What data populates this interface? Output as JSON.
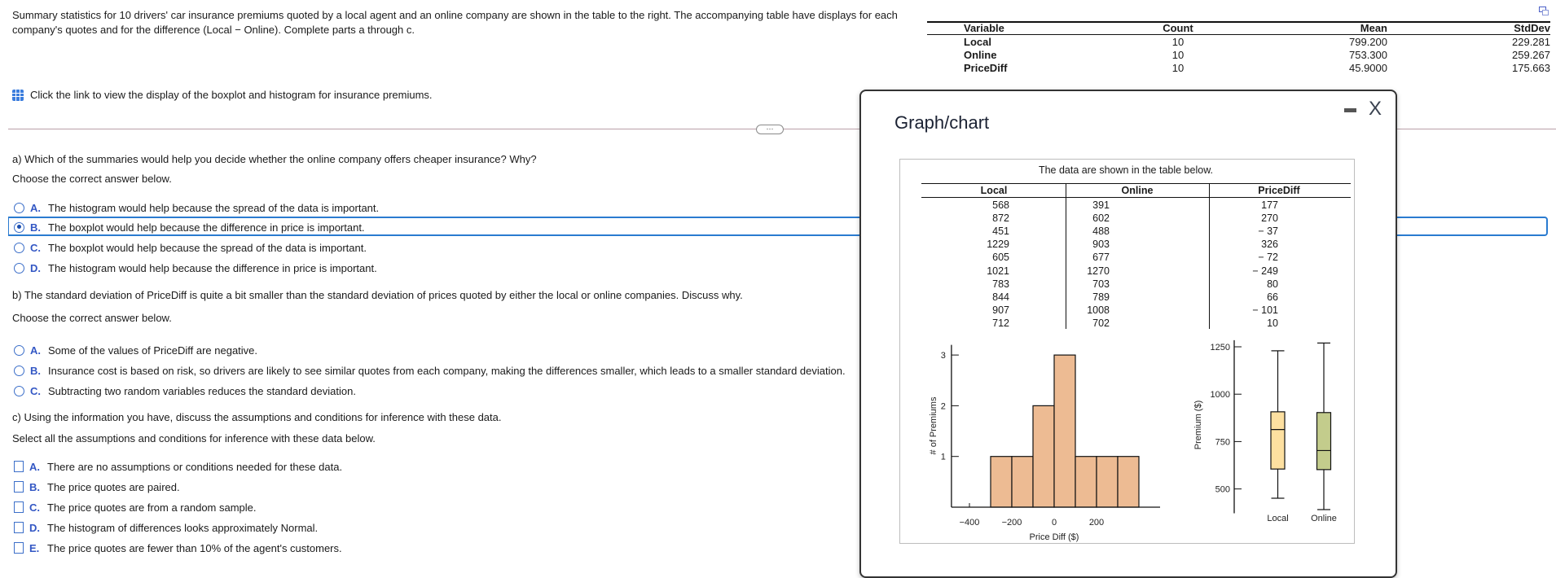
{
  "intro": "Summary statistics for 10 drivers' car insurance premiums quoted by a local agent and an online company are shown in the table to the right. The accompanying table have displays for each company's quotes and for the difference (Local − Online). Complete parts a through c.",
  "stats_table": {
    "headers": [
      "Variable",
      "Count",
      "Mean",
      "StdDev"
    ],
    "rows": [
      [
        "Local",
        "10",
        "799.200",
        "229.281"
      ],
      [
        "Online",
        "10",
        "753.300",
        "259.267"
      ],
      [
        "PriceDiff",
        "10",
        "45.9000",
        "175.663"
      ]
    ]
  },
  "link_text": "Click the link to view the display of the boxplot and histogram for insurance premiums.",
  "ellipsis": "···",
  "part_a": {
    "question": "a) Which of the summaries would help you decide whether the online company offers cheaper insurance? Why?",
    "instruction": "Choose the correct answer below.",
    "options": [
      {
        "letter": "A.",
        "text": "The histogram would help because the spread of the data is important.",
        "selected": false
      },
      {
        "letter": "B.",
        "text": "The boxplot would help because the difference in price is important.",
        "selected": true
      },
      {
        "letter": "C.",
        "text": "The boxplot would help because the spread of the data is important.",
        "selected": false
      },
      {
        "letter": "D.",
        "text": "The histogram would help because the difference in price is important.",
        "selected": false
      }
    ]
  },
  "part_b": {
    "question": "b) The standard deviation of PriceDiff is quite a bit smaller than the standard deviation of prices quoted by either the local or online companies. Discuss why.",
    "instruction": "Choose the correct answer below.",
    "options": [
      {
        "letter": "A.",
        "text": "Some of the values of PriceDiff are negative."
      },
      {
        "letter": "B.",
        "text": "Insurance cost is based on risk, so drivers are likely to see similar quotes from each company, making the differences smaller, which leads to a smaller standard deviation."
      },
      {
        "letter": "C.",
        "text": "Subtracting two random variables reduces the standard deviation."
      }
    ]
  },
  "part_c": {
    "question": "c) Using the information you have, discuss the assumptions and conditions for inference with these data.",
    "instruction": "Select all the assumptions and conditions for inference with these data below.",
    "options": [
      {
        "letter": "A.",
        "text": "There are no assumptions or conditions needed for these data."
      },
      {
        "letter": "B.",
        "text": "The price quotes are paired."
      },
      {
        "letter": "C.",
        "text": "The price quotes are from a random sample."
      },
      {
        "letter": "D.",
        "text": "The histogram of differences looks approximately Normal."
      },
      {
        "letter": "E.",
        "text": "The price quotes are fewer than 10% of the agent's customers."
      }
    ]
  },
  "modal": {
    "title": "Graph/chart",
    "close": "X",
    "caption": "The data are shown in the table below.",
    "data_table": {
      "headers": [
        "Local",
        "Online",
        "PriceDiff"
      ],
      "rows": [
        [
          "568",
          "391",
          "177"
        ],
        [
          "872",
          "602",
          "270"
        ],
        [
          "451",
          "488",
          "− 37"
        ],
        [
          "1229",
          "903",
          "326"
        ],
        [
          "605",
          "677",
          "− 72"
        ],
        [
          "1021",
          "1270",
          "− 249"
        ],
        [
          "783",
          "703",
          "80"
        ],
        [
          "844",
          "789",
          "66"
        ],
        [
          "907",
          "1008",
          "− 101"
        ],
        [
          "712",
          "702",
          "10"
        ]
      ]
    }
  },
  "colors": {
    "accent": "#2a7bd0",
    "histogram_bar": "#edbb93",
    "local_box": "#fde0a0",
    "online_box": "#c3cc8c"
  },
  "chart_data": [
    {
      "type": "histogram",
      "xlabel": "Price Diff ($)",
      "ylabel": "# of Premiums",
      "bins": [
        [
          -300,
          -200
        ],
        [
          -200,
          -100
        ],
        [
          -100,
          0
        ],
        [
          0,
          100
        ],
        [
          100,
          200
        ],
        [
          200,
          300
        ],
        [
          300,
          400
        ]
      ],
      "values": [
        1,
        1,
        2,
        3,
        1,
        1,
        1
      ],
      "xticks": [
        "−400",
        "−200",
        "0",
        "200"
      ],
      "yticks": [
        "1",
        "2",
        "3"
      ],
      "xlim": [
        -485,
        500
      ],
      "ylim": [
        0,
        3.2
      ]
    },
    {
      "type": "boxplot",
      "ylabel": "Premium ($)",
      "categories": [
        "Local",
        "Online"
      ],
      "series": [
        {
          "min": 451,
          "q1": 605,
          "median": 813.5,
          "q3": 907,
          "max": 1229
        },
        {
          "min": 391,
          "q1": 602,
          "median": 702.5,
          "q3": 903,
          "max": 1270
        }
      ],
      "yticks": [
        "500",
        "750",
        "1000",
        "1250"
      ],
      "ylim": [
        380,
        1285
      ]
    }
  ]
}
